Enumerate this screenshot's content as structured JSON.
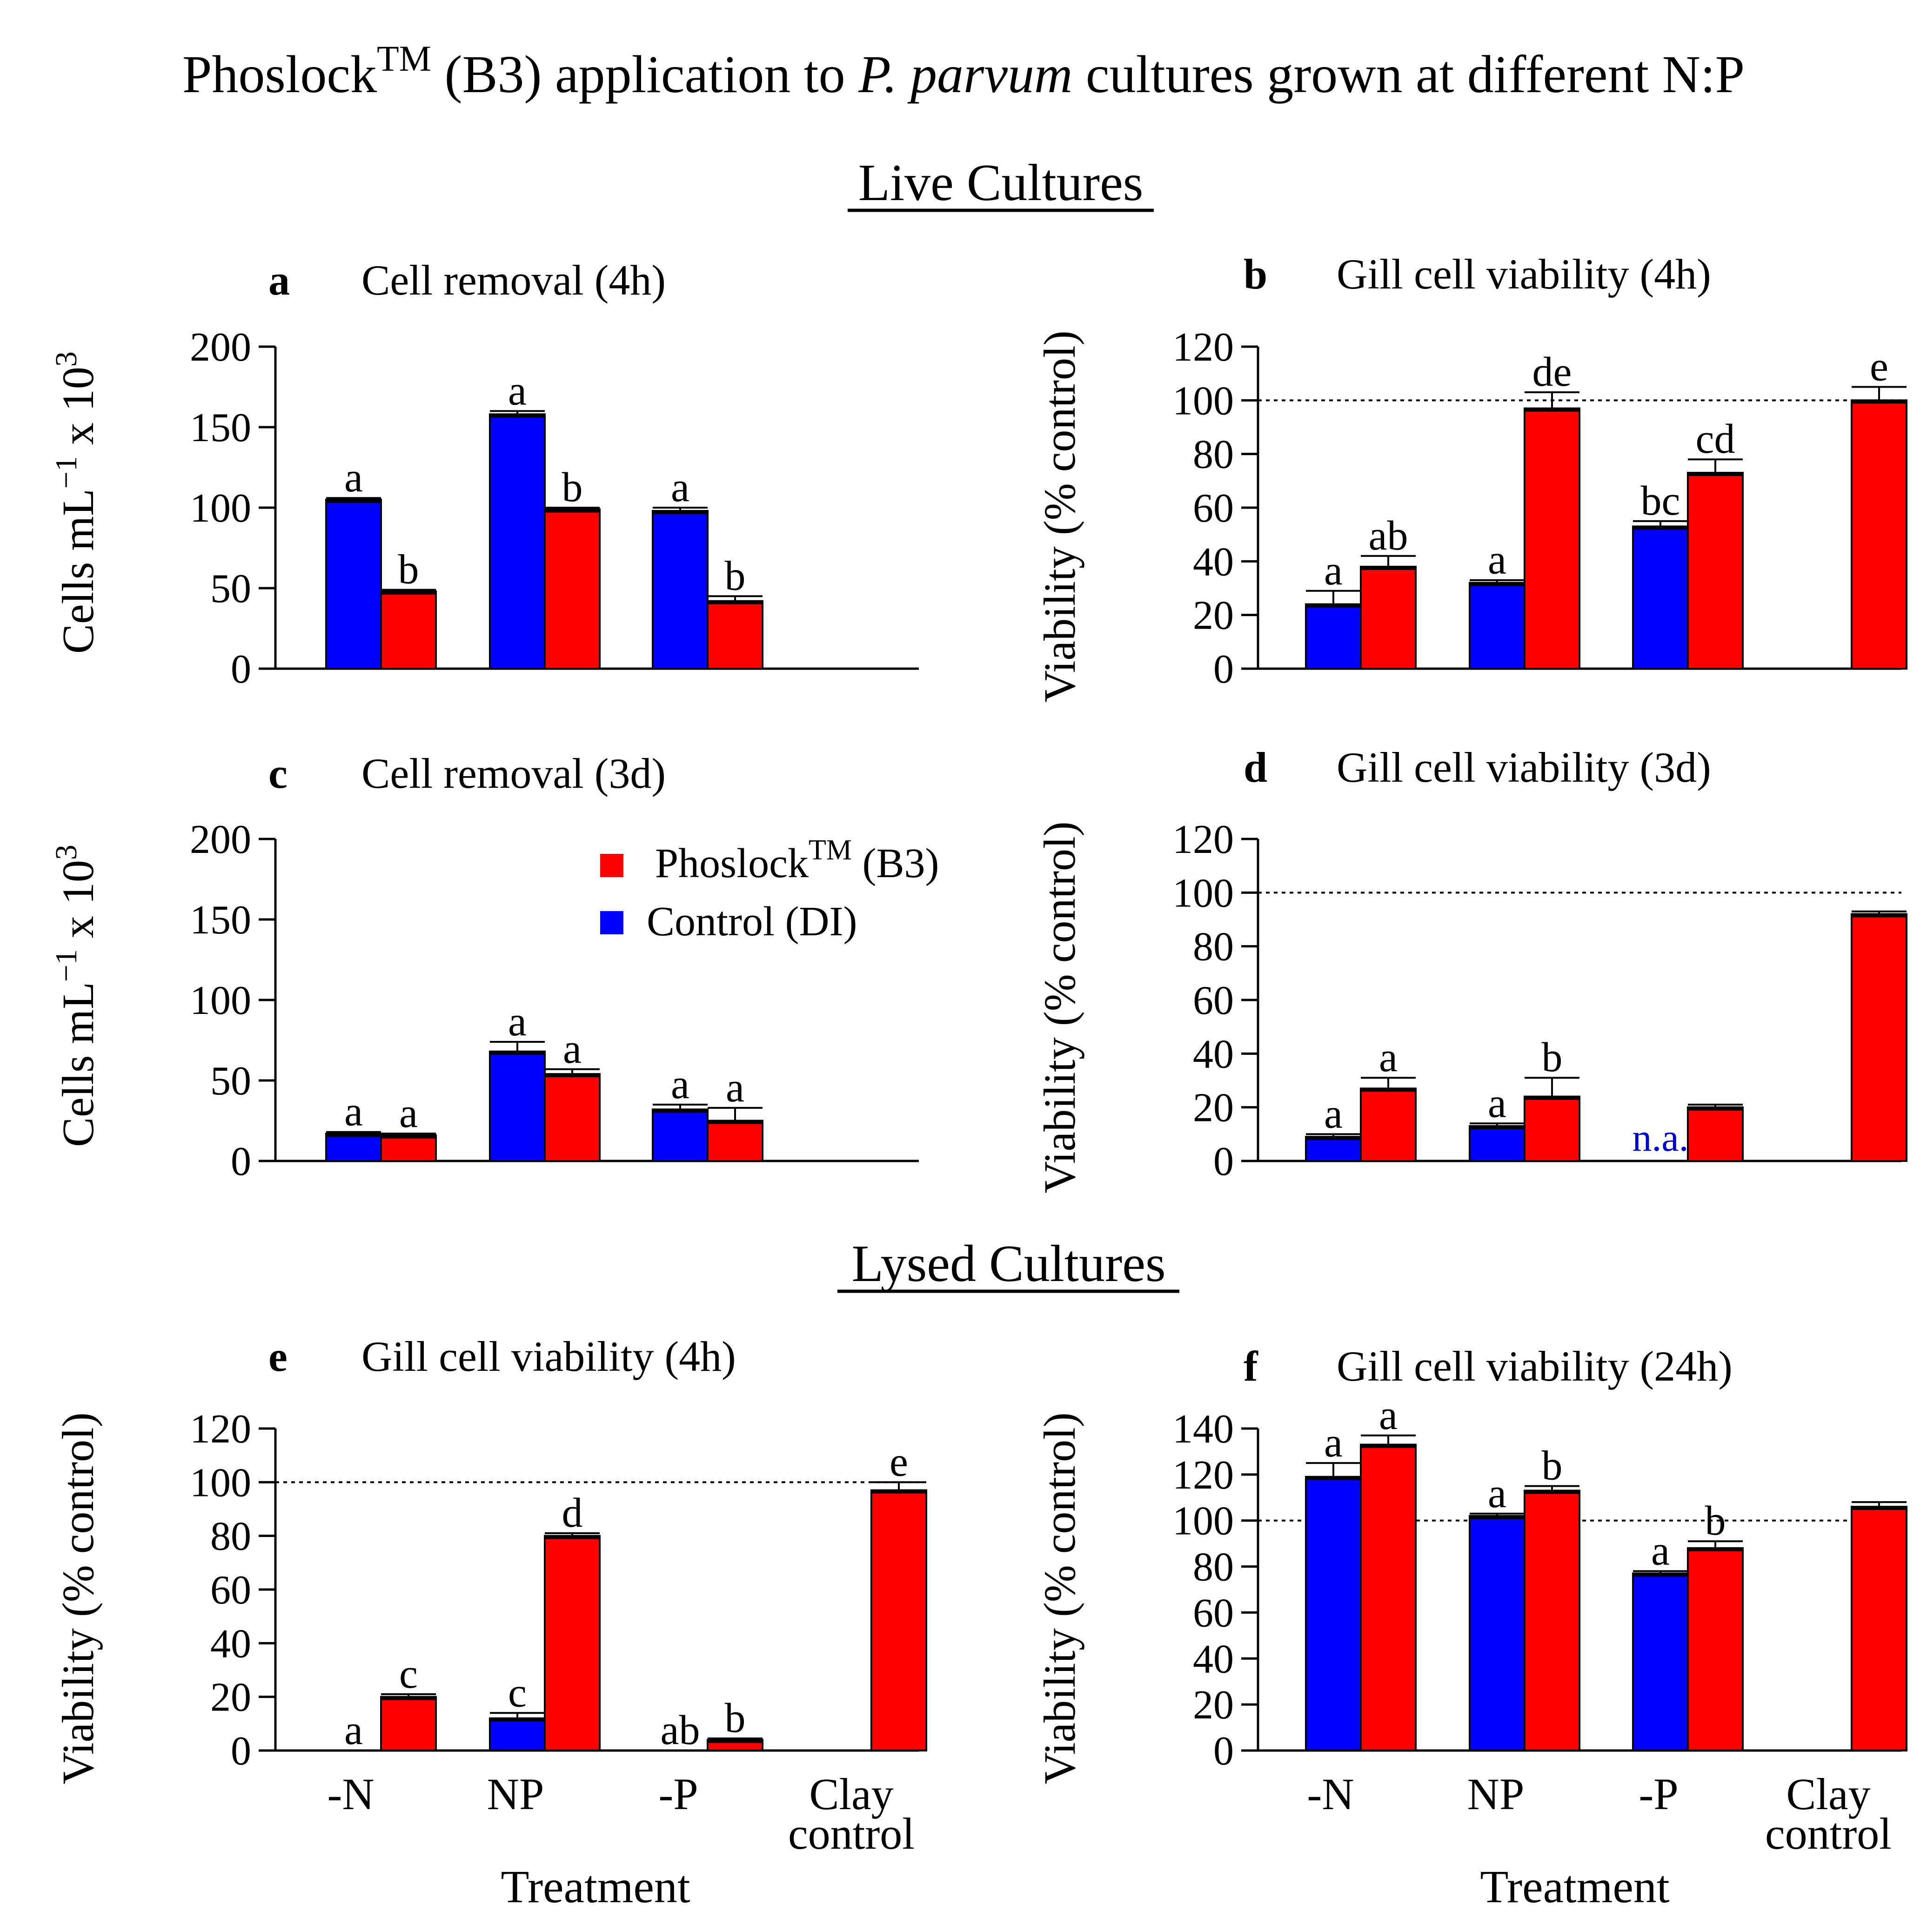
{
  "figure": {
    "title_prefix": "Phoslock",
    "title_sup": "TM",
    "title_mid": " (B3) application to ",
    "title_italic": "P. parvum",
    "title_suffix": " cultures grown at different N:P",
    "section_live": "Live Cultures",
    "section_lysed": "Lysed Cultures"
  },
  "legend": {
    "phoslock_label": "Phoslock",
    "phoslock_sup": "TM",
    "phoslock_suffix": " (B3)",
    "control_label": "Control (DI)"
  },
  "colors": {
    "phoslock": "#ff0000",
    "control": "#0000ff",
    "na_text": "#0000cc"
  },
  "axis_labels": {
    "cells_main": "Cells mL",
    "cells_exp1": "−1",
    "cells_mid": " x 10",
    "cells_exp2": "3",
    "viability": "Viability (% control)",
    "x_title": "Treatment"
  },
  "x_tick_labels": {
    "minus_n": "-N",
    "np": "NP",
    "minus_p": "-P",
    "clay_1": "Clay",
    "clay_2": "control"
  },
  "chart_data": [
    {
      "id": "a",
      "panel_letter": "a",
      "title": "Cell removal (4h)",
      "type": "bar",
      "ylabel": "Cells mL−1 x 103",
      "ylim": [
        0,
        200
      ],
      "yticks": [
        0,
        50,
        100,
        150,
        200
      ],
      "categories": [
        "-N",
        "NP",
        "-P",
        "Clay control"
      ],
      "reference_line": null,
      "series": [
        {
          "name": "Control (DI)",
          "values": [
            105,
            158,
            98,
            null
          ],
          "errors": [
            1,
            2,
            2,
            null
          ],
          "letters": [
            "a",
            "a",
            "a",
            null
          ]
        },
        {
          "name": "PhoslockTM (B3)",
          "values": [
            48,
            99,
            42,
            null
          ],
          "errors": [
            1,
            1,
            3,
            null
          ],
          "letters": [
            "b",
            "b",
            "b",
            null
          ]
        }
      ]
    },
    {
      "id": "b",
      "panel_letter": "b",
      "title": "Gill cell viability (4h)",
      "type": "bar",
      "ylabel": "Viability (% control)",
      "ylim": [
        0,
        120
      ],
      "yticks": [
        0,
        20,
        40,
        60,
        80,
        100,
        120
      ],
      "categories": [
        "-N",
        "NP",
        "-P",
        "Clay control"
      ],
      "reference_line": 100,
      "series": [
        {
          "name": "Control (DI)",
          "values": [
            24,
            32,
            53,
            null
          ],
          "errors": [
            5,
            1,
            2,
            null
          ],
          "letters": [
            "a",
            "a",
            "bc",
            null
          ]
        },
        {
          "name": "PhoslockTM (B3)",
          "values": [
            38,
            97,
            73,
            100
          ],
          "errors": [
            4,
            6,
            5,
            5
          ],
          "letters": [
            "ab",
            "de",
            "cd",
            "e"
          ]
        }
      ]
    },
    {
      "id": "c",
      "panel_letter": "c",
      "title": "Cell removal (3d)",
      "type": "bar",
      "ylabel": "Cells mL−1 x 103",
      "ylim": [
        0,
        200
      ],
      "yticks": [
        0,
        50,
        100,
        150,
        200
      ],
      "categories": [
        "-N",
        "NP",
        "-P",
        "Clay control"
      ],
      "reference_line": null,
      "series": [
        {
          "name": "Control (DI)",
          "values": [
            17,
            68,
            32,
            null
          ],
          "errors": [
            1,
            6,
            3,
            null
          ],
          "letters": [
            "a",
            "a",
            "a",
            null
          ]
        },
        {
          "name": "PhoslockTM (B3)",
          "values": [
            16,
            54,
            25,
            null
          ],
          "errors": [
            1,
            3,
            8,
            null
          ],
          "letters": [
            "a",
            "a",
            "a",
            null
          ]
        }
      ]
    },
    {
      "id": "d",
      "panel_letter": "d",
      "title": "Gill cell viability (3d)",
      "type": "bar",
      "ylabel": "Viability (% control)",
      "ylim": [
        0,
        120
      ],
      "yticks": [
        0,
        20,
        40,
        60,
        80,
        100,
        120
      ],
      "categories": [
        "-N",
        "NP",
        "-P",
        "Clay control"
      ],
      "reference_line": 100,
      "series": [
        {
          "name": "Control (DI)",
          "values": [
            9,
            13,
            null,
            null
          ],
          "errors": [
            1,
            1,
            null,
            null
          ],
          "letters": [
            "a",
            "a",
            "n.a.",
            null
          ]
        },
        {
          "name": "PhoslockTM (B3)",
          "values": [
            27,
            24,
            20,
            92
          ],
          "errors": [
            4,
            7,
            1,
            1
          ],
          "letters": [
            "a",
            "b",
            null,
            null
          ]
        }
      ]
    },
    {
      "id": "e",
      "panel_letter": "e",
      "title": "Gill cell viability (4h)",
      "type": "bar",
      "ylabel": "Viability (% control)",
      "ylim": [
        0,
        120
      ],
      "yticks": [
        0,
        20,
        40,
        60,
        80,
        100,
        120
      ],
      "categories": [
        "-N",
        "NP",
        "-P",
        "Clay control"
      ],
      "reference_line": 100,
      "series": [
        {
          "name": "Control (DI)",
          "values": [
            0,
            12,
            0,
            null
          ],
          "errors": [
            0,
            2,
            0,
            null
          ],
          "letters": [
            "a",
            "c",
            "ab",
            null
          ]
        },
        {
          "name": "PhoslockTM (B3)",
          "values": [
            20,
            80,
            4,
            97
          ],
          "errors": [
            1,
            1,
            0.5,
            3
          ],
          "letters": [
            "c",
            "d",
            "b",
            "e"
          ]
        }
      ]
    },
    {
      "id": "f",
      "panel_letter": "f",
      "title": "Gill cell viability (24h)",
      "type": "bar",
      "ylabel": "Viability (% control)",
      "ylim": [
        0,
        140
      ],
      "yticks": [
        0,
        20,
        40,
        60,
        80,
        100,
        120,
        140
      ],
      "categories": [
        "-N",
        "NP",
        "-P",
        "Clay control"
      ],
      "reference_line": 100,
      "series": [
        {
          "name": "Control (DI)",
          "values": [
            119,
            102,
            77,
            null
          ],
          "errors": [
            6,
            1,
            1,
            null
          ],
          "letters": [
            "a",
            "a",
            "a",
            null
          ]
        },
        {
          "name": "PhoslockTM (B3)",
          "values": [
            133,
            113,
            88,
            106
          ],
          "errors": [
            4,
            2,
            3,
            2
          ],
          "letters": [
            "a",
            "b",
            "b",
            null
          ]
        }
      ]
    }
  ]
}
